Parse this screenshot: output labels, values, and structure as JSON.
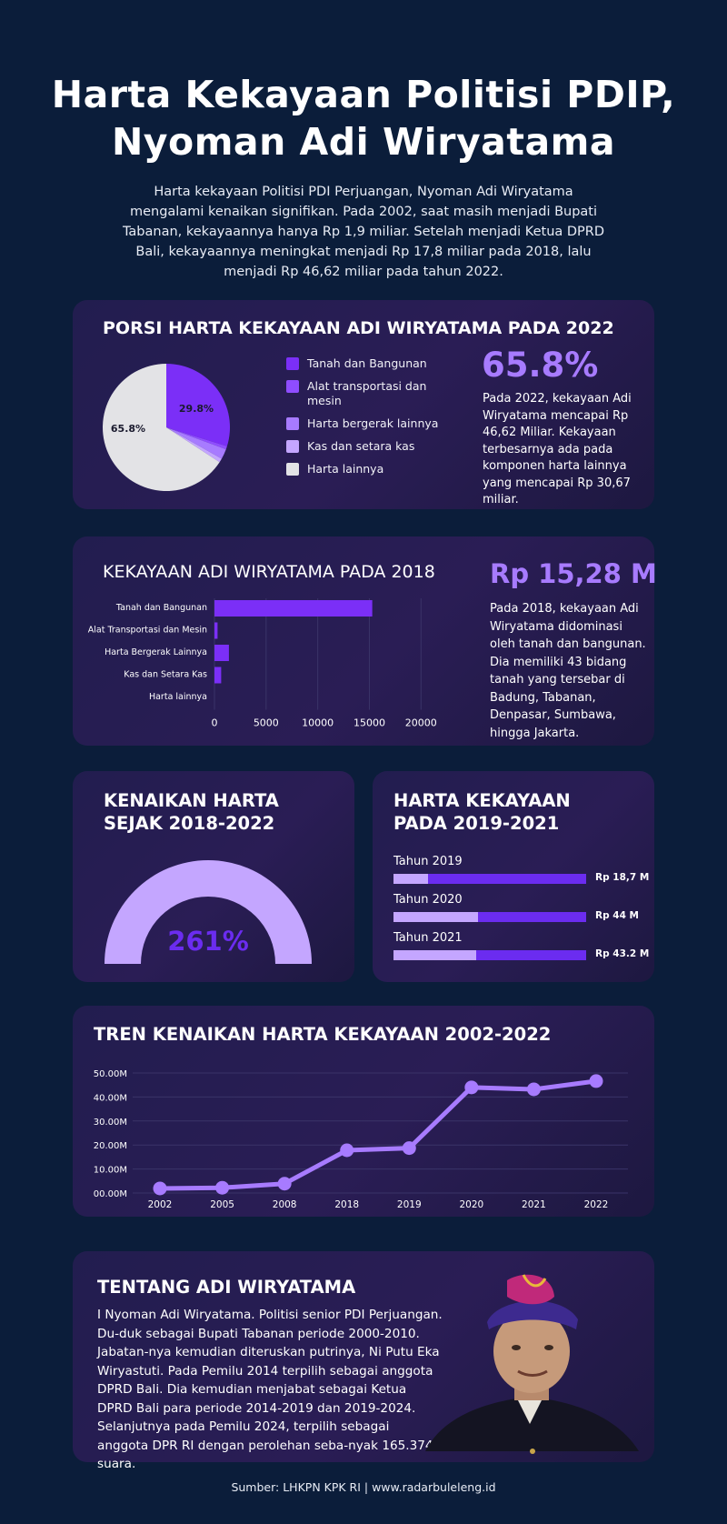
{
  "title_line1": "Harta Kekayaan Politisi PDIP,",
  "title_line2": "Nyoman Adi Wiryatama",
  "intro": "Harta kekayaan  Politisi PDI Perjuangan, Nyoman Adi Wiryatama mengalami kenaikan signifikan. Pada 2002, saat masih menjadi Bupati Tabanan, kekayaannya hanya Rp 1,9 miliar. Setelah menjadi Ketua DPRD Bali, kekayaannya meningkat menjadi Rp 17,8 miliar pada 2018, lalu menjadi Rp 46,62 miliar pada tahun 2022.",
  "pie_section": {
    "title": "PORSI HARTA KEKAYAAN ADI WIRYATAMA PADA 2022",
    "big_number": "65.8%",
    "description": "Pada 2022, kekayaan Adi Wiryatama mencapai Rp 46,62 Miliar. Kekayaan terbesarnya ada pada komponen harta lainnya yang mencapai Rp 30,67 miliar.",
    "label_large": "29.8%",
    "label_other": "65.8%"
  },
  "bar_section": {
    "title": "KEKAYAAN ADI WIRYATAMA PADA 2018",
    "big_number": "Rp 15,28 M",
    "description": "Pada 2018, kekayaan Adi Wiryatama didominasi oleh tanah dan bangunan. Dia memiliki 43 bidang tanah yang tersebar di Badung, Tabanan, Denpasar, Sumbawa, hingga Jakarta."
  },
  "gauge_section": {
    "title_line1": "KENAIKAN HARTA",
    "title_line2": "SEJAK 2018-2022",
    "value": "261%"
  },
  "progress_section": {
    "title_line1": "HARTA KEKAYAAN",
    "title_line2": "PADA 2019-2021",
    "rows": [
      {
        "label": "Tahun 2019",
        "value": "Rp 18,7 M",
        "fill": 0.18
      },
      {
        "label": "Tahun 2020",
        "value": "Rp 44 M",
        "fill": 0.44
      },
      {
        "label": "Tahun 2021",
        "value": "Rp 43.2 M",
        "fill": 0.43
      }
    ]
  },
  "trend_section": {
    "title": "TREN KENAIKAN HARTA KEKAYAAN 2002-2022"
  },
  "about": {
    "title": "TENTANG ADI WIRYATAMA",
    "text": "I Nyoman Adi Wiryatama. Politisi senior PDI Perjuangan. Du-duk sebagai Bupati Tabanan periode 2000-2010. Jabatan-nya kemudian diteruskan putrinya, Ni Putu Eka Wiryastuti. Pada Pemilu 2014 terpilih sebagai anggota DPRD Bali. Dia kemudian menjabat sebagai Ketua DPRD Bali para periode 2014-2019 dan 2019-2024. Selanjutnya pada Pemilu 2024, terpilih sebagai anggota DPR RI dengan perolehan seba-nyak 165.374 suara."
  },
  "source": "Sumber: LHKPN KPK RI | www.radarbuleleng.id",
  "colors": {
    "background": "#0b1d3a",
    "accent": "#a77bff",
    "purple_dark": "#6b2cf0",
    "purple_light": "#c4a6ff",
    "pie_other": "#e3e3e6"
  },
  "chart_data": [
    {
      "type": "pie",
      "title": "PORSI HARTA KEKAYAAN ADI WIRYATAMA PADA 2022",
      "categories": [
        "Tanah dan Bangunan",
        "Alat transportasi dan mesin",
        "Harta bergerak lainnya",
        "Kas dan setara kas",
        "Harta lainnya"
      ],
      "values": [
        29.8,
        0.8,
        2.6,
        1.0,
        65.8
      ],
      "colors": [
        "#7b2ff7",
        "#8f4dff",
        "#a77bff",
        "#c4a6ff",
        "#e3e3e6"
      ],
      "legend": "right"
    },
    {
      "type": "bar",
      "orientation": "horizontal",
      "title": "KEKAYAAN ADI WIRYATAMA PADA 2018",
      "categories": [
        "Tanah dan Bangunan",
        "Alat Transportasi dan Mesin",
        "Harta Bergerak Lainnya",
        "Kas dan Setara Kas",
        "Harta lainnya"
      ],
      "values": [
        15280,
        300,
        1400,
        650,
        0
      ],
      "xlim": [
        0,
        22000
      ],
      "xticks": [
        "0",
        "5000",
        "10000",
        "15000",
        "20000"
      ],
      "grid": true
    },
    {
      "type": "line",
      "title": "TREN KENAIKAN HARTA KEKAYAAN 2002-2022",
      "x": [
        "2002",
        "2005",
        "2008",
        "2018",
        "2019",
        "2020",
        "2021",
        "2022"
      ],
      "series": [
        {
          "values": [
            1.9,
            2.2,
            3.9,
            17.8,
            18.7,
            44.0,
            43.2,
            46.62
          ]
        }
      ],
      "ylim": [
        0,
        50
      ],
      "yticks": [
        "00.00M",
        "10.00M",
        "20.00M",
        "30.00M",
        "40.00M",
        "50.00M"
      ],
      "grid": true
    }
  ]
}
